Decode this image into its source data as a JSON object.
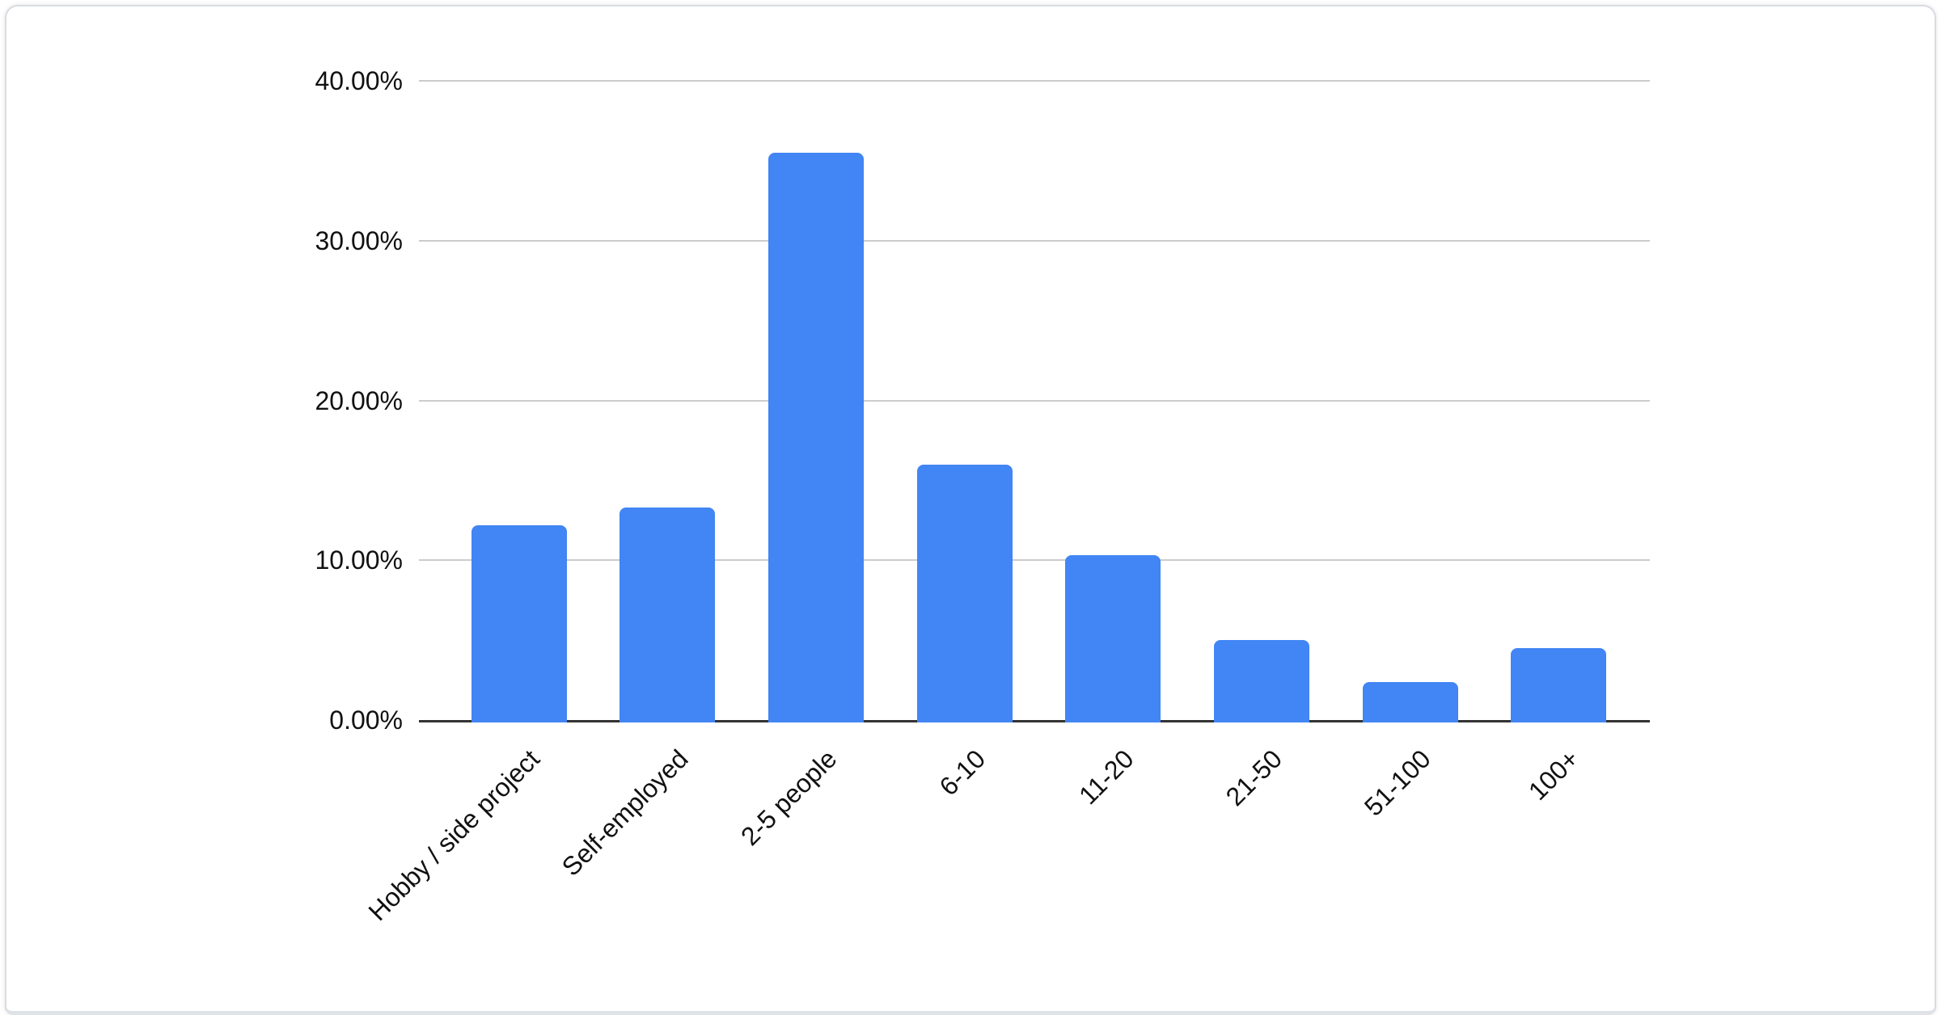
{
  "chart_data": {
    "type": "bar",
    "title": "",
    "xlabel": "",
    "ylabel": "",
    "categories": [
      "Hobby / side project",
      "Self-employed",
      "2-5 people",
      "6-10",
      "11-20",
      "21-50",
      "51-100",
      "100+"
    ],
    "values": [
      12.2,
      13.3,
      35.5,
      16.0,
      10.3,
      5.0,
      2.4,
      4.5
    ],
    "value_unit": "percent",
    "ylim": [
      0,
      40
    ],
    "y_ticks": [
      {
        "value": 0,
        "label": "0.00%"
      },
      {
        "value": 10,
        "label": "10.00%"
      },
      {
        "value": 20,
        "label": "20.00%"
      },
      {
        "value": 30,
        "label": "30.00%"
      },
      {
        "value": 40,
        "label": "40.00%"
      }
    ],
    "grid": true,
    "legend": "none",
    "colors": {
      "bar": "#4285F4",
      "axis": "#333333",
      "gridline": "#cccccc",
      "tick_text": "#111111",
      "card_border": "#d9dce1",
      "background": "#ffffff"
    }
  }
}
